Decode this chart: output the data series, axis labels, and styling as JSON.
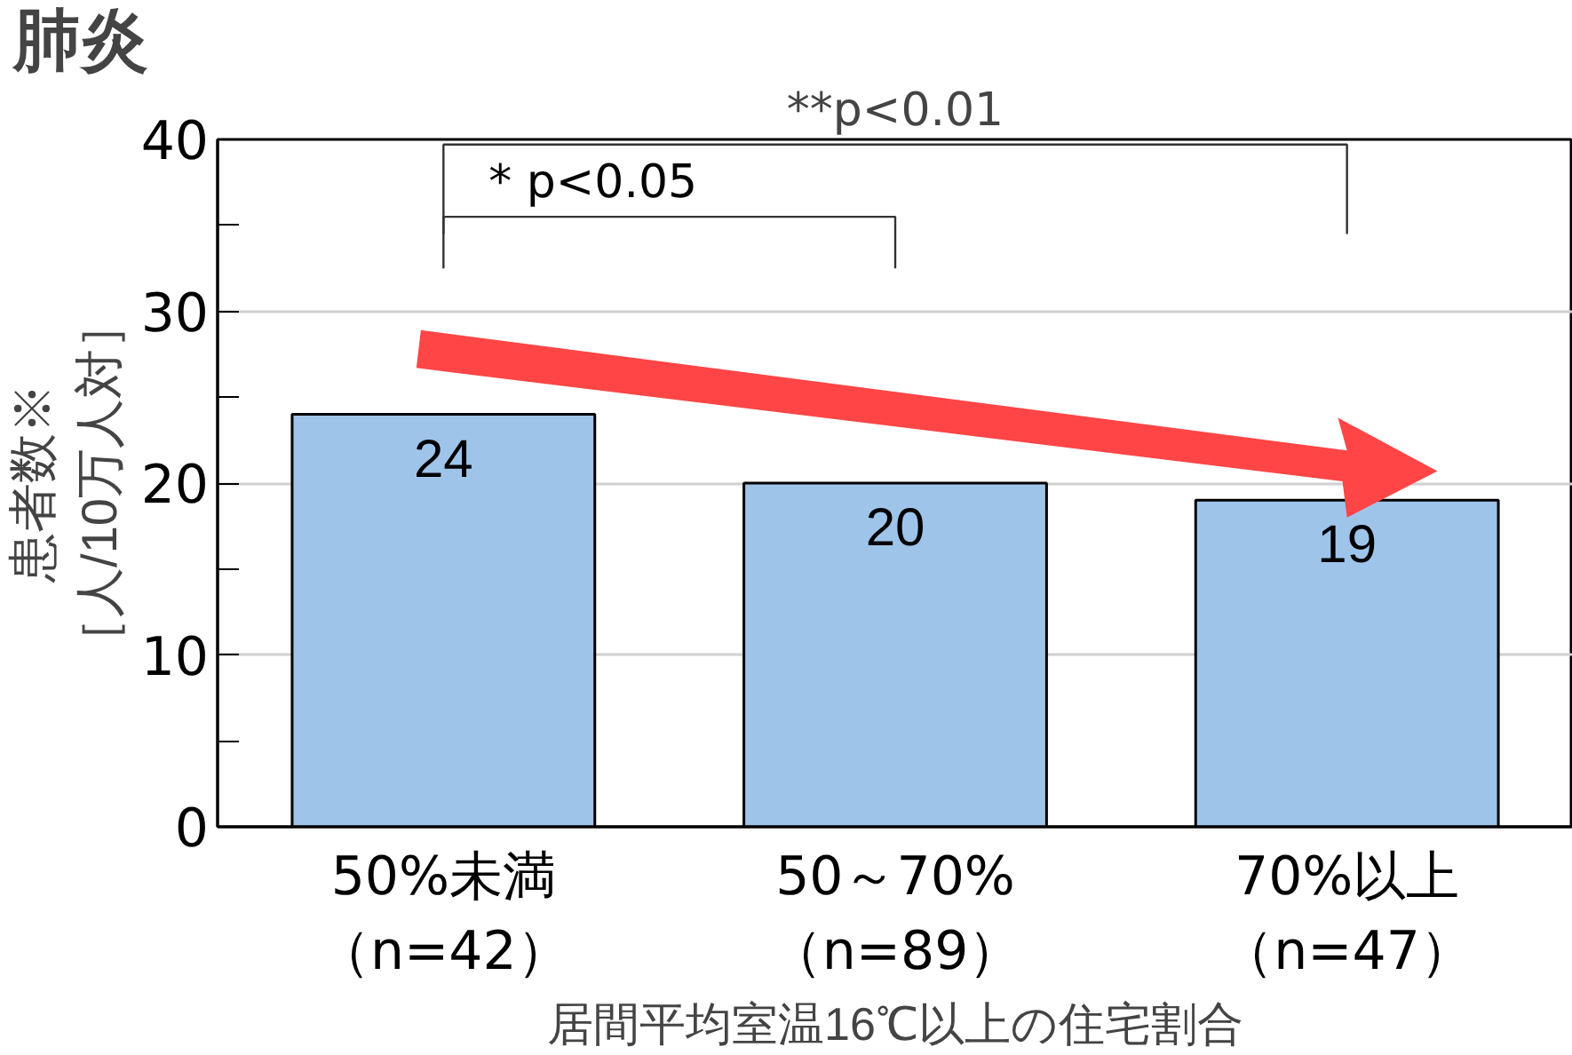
{
  "chart_data": {
    "type": "bar",
    "title": "肺炎",
    "xlabel": "居間平均室温16℃以上の住宅割合",
    "ylabel": "患者数※\n［人/10万人対］",
    "categories": [
      "50%未満（n=42）",
      "50～70%（n=89）",
      "70%以上（n=47）"
    ],
    "values": [
      24,
      20,
      19
    ],
    "color": "#9fc4ea",
    "data_labels": true,
    "ylim": [
      0,
      40
    ],
    "yticks": [
      0,
      {
        "value": 5,
        "label": null
      },
      10,
      {
        "value": 15,
        "label": null
      },
      20,
      {
        "value": 25,
        "label": null
      },
      30,
      {
        "value": 35,
        "label": null
      },
      40
    ],
    "grid": "y",
    "annotations": [
      "* p<0.05",
      "**p<0.01"
    ]
  }
}
